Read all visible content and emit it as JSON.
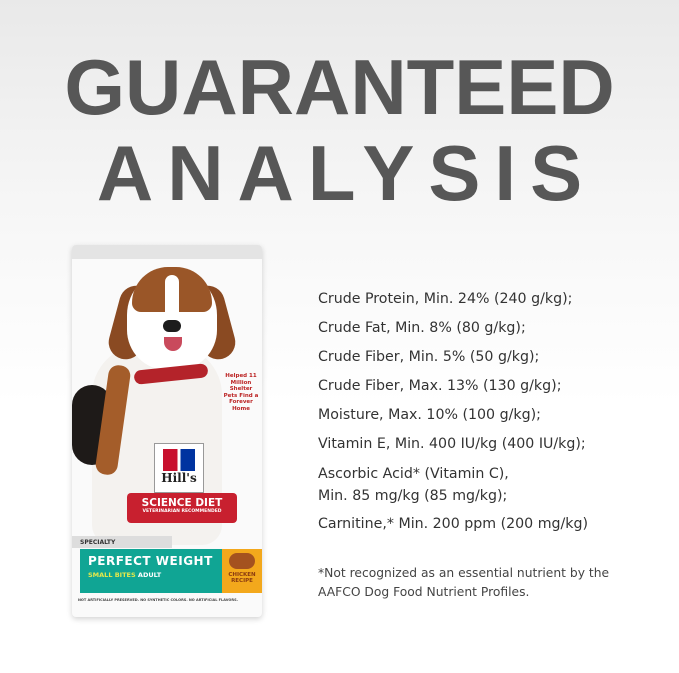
{
  "heading": {
    "line1": "GUARANTEED",
    "line2": "ANALYSIS"
  },
  "product": {
    "brand": "Hill's",
    "line": "SCIENCE DIET",
    "tagline": "VETERINARIAN RECOMMENDED",
    "category": "SPECIALTY",
    "name": "PERFECT WEIGHT",
    "variant_a": "SMALL BITES",
    "variant_b": "ADULT",
    "flavor": "CHICKEN RECIPE",
    "badge": "Helped 11 Million Shelter Pets Find a Forever Home",
    "fine_print": "NOT ARTIFICIALLY PRESERVED. NO SYNTHETIC COLORS. NO ARTIFICIAL FLAVORS.",
    "colors": {
      "teal": "#10a594",
      "red": "#c8202f",
      "orange": "#f3a81c"
    }
  },
  "analysis": [
    "Crude Protein, Min. 24% (240 g/kg);",
    "Crude Fat, Min. 8% (80 g/kg);",
    "Crude Fiber, Min. 5% (50 g/kg);",
    "Crude Fiber, Max. 13% (130 g/kg);",
    "Moisture, Max. 10% (100 g/kg);",
    "Vitamin E, Min. 400 IU/kg (400 IU/kg);",
    "Ascorbic Acid* (Vitamin C),",
    "Min. 85 mg/kg (85 mg/kg);",
    "Carnitine,* Min. 200 ppm (200 mg/kg)"
  ],
  "footnote": {
    "line1": "*Not recognized as an essential nutrient by the",
    "line2": "AAFCO Dog Food Nutrient Profiles."
  }
}
